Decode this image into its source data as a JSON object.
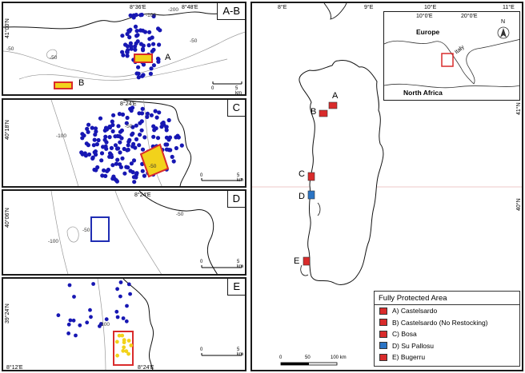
{
  "panels": {
    "ab": {
      "label": "A-B",
      "coord_top_1": "8°36'E",
      "coord_top_2": "8°48'E",
      "coord_left": "41°00'N",
      "depths": [
        "-100",
        "-200",
        "-50",
        "-50",
        "-50"
      ],
      "site_labels": [
        "A",
        "B"
      ],
      "scale": [
        "0",
        "5 km"
      ]
    },
    "c": {
      "label": "C",
      "coord_top": "8°24'E",
      "coord_left": "40°18'N",
      "depths": [
        "-100",
        "-50",
        "-50"
      ],
      "scale": [
        "0",
        "5 km"
      ]
    },
    "d": {
      "label": "D",
      "coord_top": "8°24'E",
      "coord_left": "40°06'N",
      "depths": [
        "-100",
        "-50",
        "-50"
      ],
      "scale": [
        "0",
        "5 km"
      ]
    },
    "e": {
      "label": "E",
      "coord_bottom_1": "8°12'E",
      "coord_bottom_2": "8°24'E",
      "coord_left": "39°24'N",
      "depths": [
        "-100"
      ],
      "scale": [
        "0",
        "5 km"
      ]
    }
  },
  "main_map": {
    "coord_top": [
      "8°E",
      "9°E"
    ],
    "coord_right": [
      "41°N",
      "40°N"
    ],
    "site_labels": [
      "A",
      "B",
      "C",
      "D",
      "E"
    ],
    "scale": [
      "0",
      "50",
      "100 km"
    ]
  },
  "inset": {
    "coord_top": [
      "10°E",
      "11°E"
    ],
    "coord_inner": [
      "10°0'E",
      "20°0'E"
    ],
    "labels": {
      "europe": "Europe",
      "italy": "Italy",
      "africa": "North Africa"
    },
    "north": "N"
  },
  "legend": {
    "title": "Fully Protected Area",
    "items": [
      {
        "label": "A) Castelsardo",
        "color": "#d92b2b"
      },
      {
        "label": "B) Castelsardo (No Restocking)",
        "color": "#d92b2b"
      },
      {
        "label": "C) Bosa",
        "color": "#d92b2b"
      },
      {
        "label": "D) Su Pallosu",
        "color": "#2b74c4"
      },
      {
        "label": "E) Bugerru",
        "color": "#d92b2b"
      }
    ]
  },
  "colors": {
    "reserve": "#d92b2b",
    "reserve_blue": "#2b74c4",
    "points": "#1717b3",
    "highlight": "#f2d21b",
    "grid": "#e8b4b4"
  }
}
